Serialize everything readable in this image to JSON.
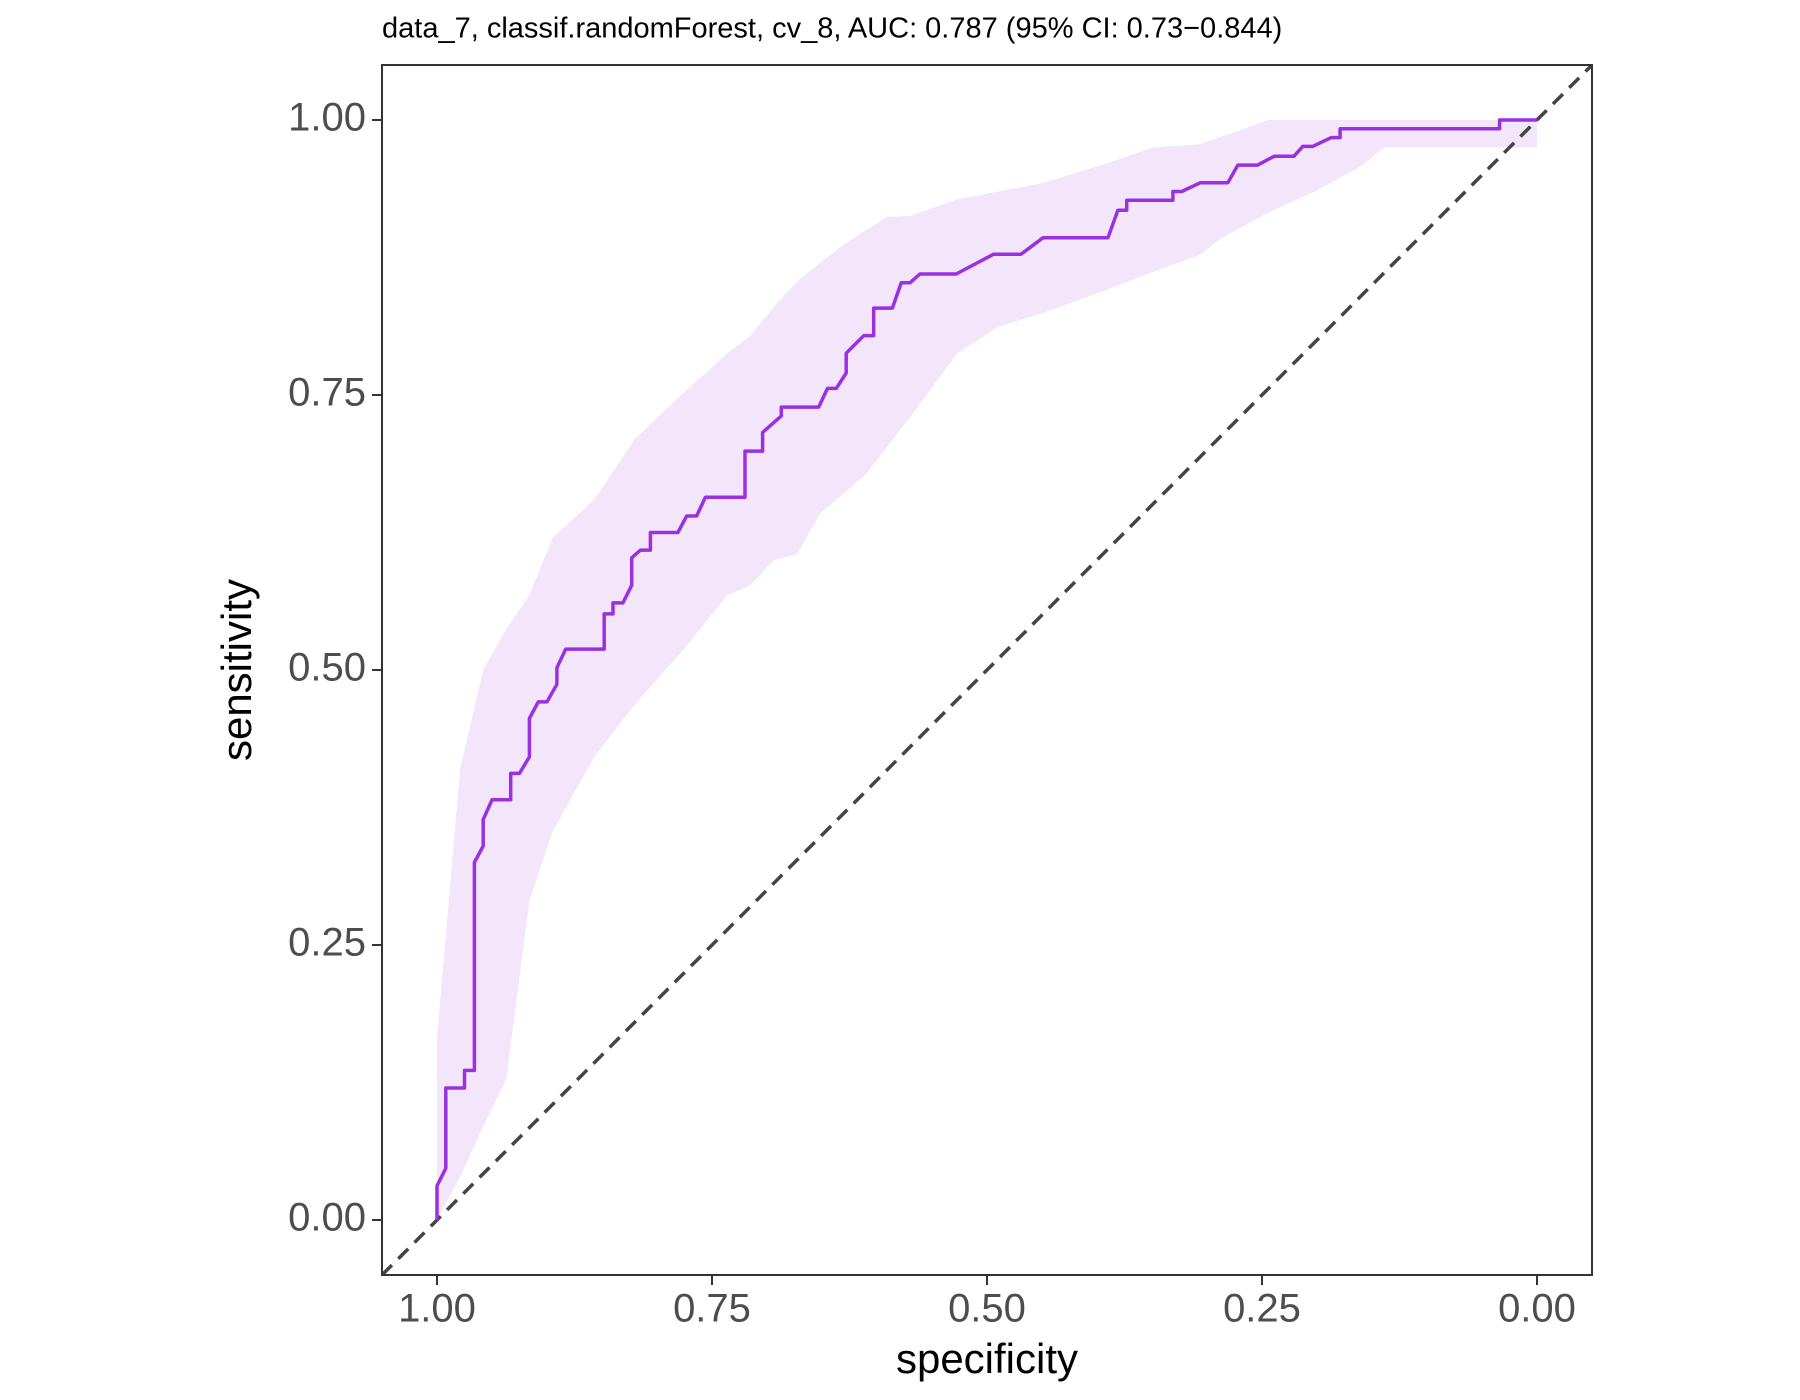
{
  "chart_data": {
    "type": "roc",
    "title": "data_7, classif.randomForest, cv_8, AUC: 0.787 (95% CI: 0.73−0.844)",
    "x_label": "specificity",
    "y_label": "sensitivity",
    "xlim": [
      1.05,
      -0.05
    ],
    "ylim": [
      -0.05,
      1.05
    ],
    "xticks": [
      {
        "value": 1,
        "label": "1.00"
      },
      {
        "value": 0.75,
        "label": "0.75"
      },
      {
        "value": 0.5,
        "label": "0.50"
      },
      {
        "value": 0.25,
        "label": "0.25"
      },
      {
        "value": 0,
        "label": "0.00"
      }
    ],
    "yticks": [
      {
        "value": 0,
        "label": "0.00"
      },
      {
        "value": 0.25,
        "label": "0.25"
      },
      {
        "value": 0.5,
        "label": "0.50"
      },
      {
        "value": 0.75,
        "label": "0.75"
      },
      {
        "value": 1,
        "label": "1.00"
      }
    ],
    "grid": false,
    "line_color": "#9b30e0",
    "band_color": "#f3e5fa",
    "series": [
      {
        "x": [
          1,
          1,
          0.992,
          0.992,
          0.975,
          0.975,
          0.966,
          0.966,
          0.958,
          0.958,
          0.95,
          0.933,
          0.933,
          0.925,
          0.916,
          0.916,
          0.908,
          0.9,
          0.891,
          0.891,
          0.883,
          0.848,
          0.848,
          0.84,
          0.84,
          0.831,
          0.823,
          0.823,
          0.815,
          0.806,
          0.806,
          0.781,
          0.773,
          0.764,
          0.756,
          0.72,
          0.72,
          0.704,
          0.704,
          0.687,
          0.687,
          0.653,
          0.645,
          0.637,
          0.628,
          0.628,
          0.612,
          0.603,
          0.603,
          0.586,
          0.578,
          0.57,
          0.561,
          0.528,
          0.494,
          0.469,
          0.449,
          0.39,
          0.381,
          0.373,
          0.373,
          0.331,
          0.331,
          0.323,
          0.306,
          0.281,
          0.272,
          0.254,
          0.239,
          0.221,
          0.213,
          0.204,
          0.187,
          0.179,
          0.179,
          0.034,
          0.034,
          0
        ],
        "y": [
          0,
          0.031,
          0.047,
          0.12,
          0.12,
          0.136,
          0.136,
          0.325,
          0.34,
          0.364,
          0.382,
          0.382,
          0.406,
          0.406,
          0.421,
          0.456,
          0.471,
          0.471,
          0.487,
          0.502,
          0.519,
          0.519,
          0.551,
          0.551,
          0.561,
          0.561,
          0.577,
          0.602,
          0.609,
          0.609,
          0.625,
          0.625,
          0.64,
          0.64,
          0.657,
          0.657,
          0.699,
          0.699,
          0.716,
          0.731,
          0.739,
          0.739,
          0.756,
          0.756,
          0.77,
          0.788,
          0.804,
          0.804,
          0.829,
          0.829,
          0.852,
          0.852,
          0.86,
          0.86,
          0.878,
          0.878,
          0.893,
          0.893,
          0.918,
          0.918,
          0.927,
          0.927,
          0.935,
          0.935,
          0.943,
          0.943,
          0.959,
          0.959,
          0.967,
          0.967,
          0.976,
          0.976,
          0.984,
          0.984,
          0.992,
          0.992,
          1,
          1
        ]
      }
    ],
    "ci_band": {
      "x": [
        1,
        0.979,
        0.958,
        0.937,
        0.916,
        0.895,
        0.857,
        0.82,
        0.778,
        0.736,
        0.715,
        0.694,
        0.673,
        0.652,
        0.631,
        0.61,
        0.59,
        0.569,
        0.527,
        0.49,
        0.448,
        0.39,
        0.349,
        0.307,
        0.286,
        0.244,
        0.202,
        0.16,
        0.139,
        0
      ],
      "lower": [
        0,
        0.039,
        0.085,
        0.128,
        0.29,
        0.353,
        0.421,
        0.469,
        0.516,
        0.568,
        0.577,
        0.6,
        0.605,
        0.642,
        0.66,
        0.678,
        0.704,
        0.731,
        0.788,
        0.812,
        0.825,
        0.846,
        0.862,
        0.877,
        0.893,
        0.916,
        0.935,
        0.958,
        0.975,
        0.975
      ],
      "upper": [
        0.165,
        0.41,
        0.5,
        0.537,
        0.568,
        0.62,
        0.655,
        0.71,
        0.75,
        0.788,
        0.804,
        0.83,
        0.853,
        0.87,
        0.886,
        0.9,
        0.912,
        0.913,
        0.928,
        0.935,
        0.943,
        0.961,
        0.975,
        0.978,
        0.985,
        1,
        1,
        1,
        1,
        1
      ]
    }
  }
}
